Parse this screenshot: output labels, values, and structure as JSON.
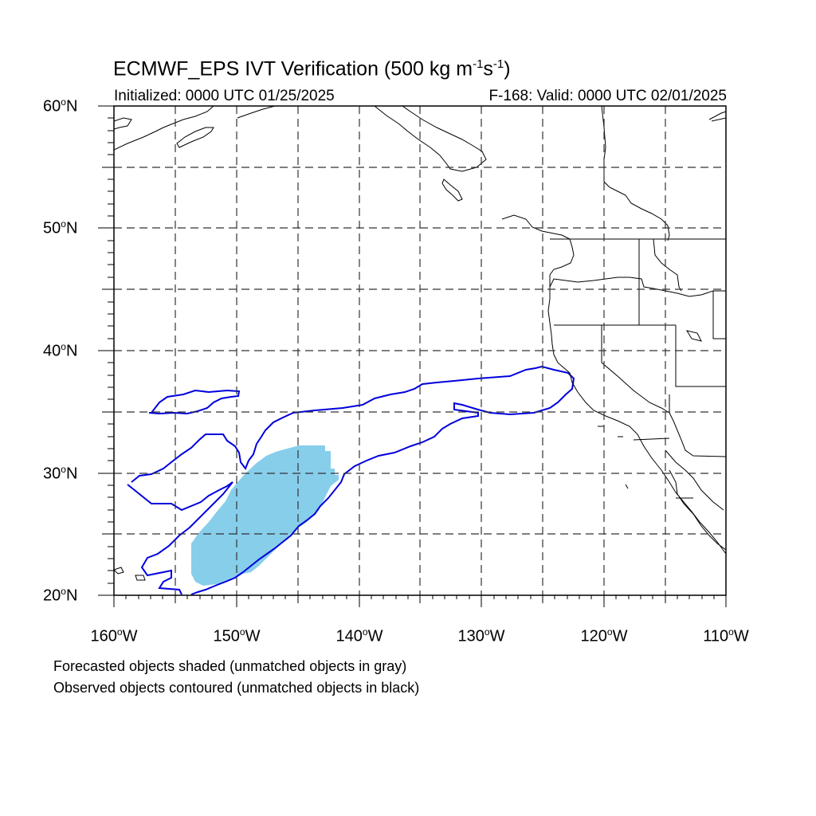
{
  "header": {
    "title_main": "ECMWF_EPS IVT Verification (500 kg m",
    "title_sup1": "-1",
    "title_mid": "s",
    "title_sup2": "-1",
    "title_end": ")",
    "init_text": "Initialized: 0000 UTC 01/25/2025",
    "valid_text": "F-168: Valid: 0000 UTC 02/01/2025"
  },
  "axes": {
    "lat_labels": [
      {
        "deg": "60",
        "sup": "o",
        "hemi": "N"
      },
      {
        "deg": "50",
        "sup": "o",
        "hemi": "N"
      },
      {
        "deg": "40",
        "sup": "o",
        "hemi": "N"
      },
      {
        "deg": "30",
        "sup": "o",
        "hemi": "N"
      },
      {
        "deg": "20",
        "sup": "o",
        "hemi": "N"
      }
    ],
    "lon_labels": [
      {
        "deg": "160",
        "sup": "o",
        "hemi": "W"
      },
      {
        "deg": "150",
        "sup": "o",
        "hemi": "W"
      },
      {
        "deg": "140",
        "sup": "o",
        "hemi": "W"
      },
      {
        "deg": "130",
        "sup": "o",
        "hemi": "W"
      },
      {
        "deg": "120",
        "sup": "o",
        "hemi": "W"
      },
      {
        "deg": "110",
        "sup": "o",
        "hemi": "W"
      }
    ],
    "lon_range": [
      -160,
      -110
    ],
    "lat_range": [
      20,
      60
    ],
    "grid": "dashed, every 5 degrees"
  },
  "legend_notes": {
    "forecast": "Forecasted objects shaded (unmatched objects in gray)",
    "observed": "Observed objects contoured (unmatched objects in black)"
  },
  "colors": {
    "forecast_fill": "#87ceeb",
    "observed_contour": "#0000dd",
    "coastline": "#000000",
    "grid": "#333333"
  }
}
